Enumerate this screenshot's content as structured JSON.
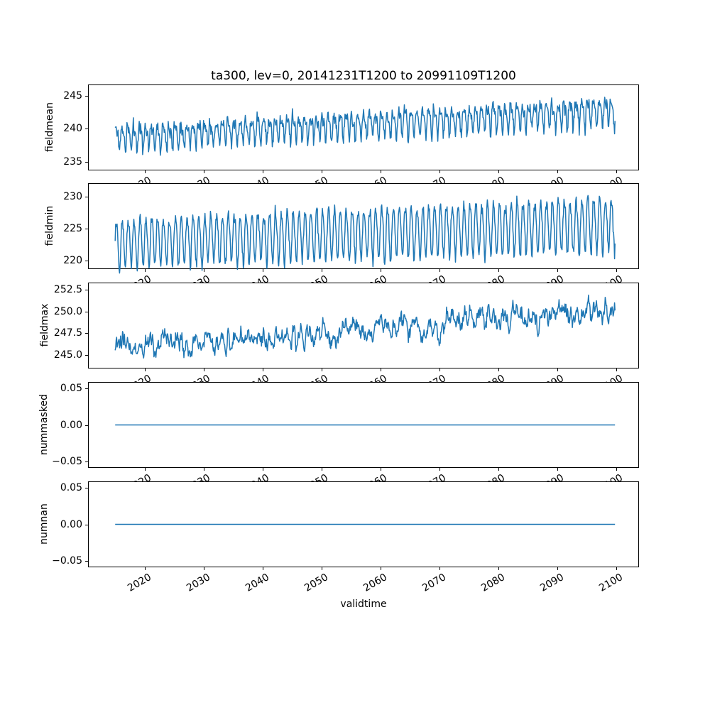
{
  "figure": {
    "background": "#ffffff",
    "text_color": "#000000",
    "spine_color": "#000000"
  },
  "chart_data": {
    "type": "line",
    "title": "ta300, lev=0, 20141231T1200 to 20991109T1200",
    "xlabel": "validtime",
    "line_color": "#1f77b4",
    "legend": "none",
    "grid": false,
    "x": {
      "start": 2015.0,
      "end": 2099.86,
      "samples_per_year": 12,
      "xlim": [
        2010.4,
        2103.9
      ],
      "xticks": [
        2020,
        2030,
        2040,
        2050,
        2060,
        2070,
        2080,
        2090,
        2100
      ],
      "xtick_labels": [
        "2020",
        "2030",
        "2040",
        "2050",
        "2060",
        "2070",
        "2080",
        "2090",
        "2100"
      ],
      "xtick_rotation_deg": 30
    },
    "subplots": [
      {
        "ylabel": "fieldmean",
        "ylim": [
          233.7,
          246.7
        ],
        "yticks": [
          235,
          240,
          245
        ],
        "ytick_labels": [
          "235",
          "240",
          "245"
        ],
        "summary": "annual oscillation, range about 235.5-242 in 2015 rising to about 240-246 by 2100",
        "gen": {
          "kind": "seasonal",
          "seed": 11,
          "base": 238.8,
          "trend_total": 3.9,
          "amp": 1.55,
          "amp_trend": 0.25,
          "harm2": 0.45,
          "phase": 0.3,
          "noise": 0.5
        }
      },
      {
        "ylabel": "fieldmin",
        "ylim": [
          218.65,
          232.1
        ],
        "yticks": [
          220,
          225,
          230
        ],
        "ytick_labels": [
          "220",
          "225",
          "230"
        ],
        "summary": "strong regular annual oscillation, range about 219-227 in 2015 rising to about 221-231 by 2100",
        "gen": {
          "kind": "seasonal",
          "seed": 22,
          "base": 222.9,
          "trend_total": 2.9,
          "amp": 3.6,
          "amp_trend": 0.5,
          "harm2": 0.12,
          "phase": 0.1,
          "noise": 0.5
        }
      },
      {
        "ylabel": "fieldmax",
        "ylim": [
          243.45,
          253.3
        ],
        "yticks": [
          245.0,
          247.5,
          250.0,
          252.5
        ],
        "ytick_labels": [
          "245.0",
          "247.5",
          "250.0",
          "252.5"
        ],
        "summary": "noisy series around 245.5 in 2015 (dips to ~243.9) rising to about 250-252.5 by 2100",
        "gen": {
          "kind": "ar1",
          "seed": 33,
          "base": 245.6,
          "trend_total": 4.6,
          "season_amp": 0.35,
          "ar": 0.75,
          "sigma": 0.5
        }
      },
      {
        "ylabel": "nummasked",
        "ylim": [
          -0.0585,
          0.0585
        ],
        "yticks": [
          -0.05,
          0.0,
          0.05
        ],
        "ytick_labels": [
          "−0.05",
          "0.00",
          "0.05"
        ],
        "summary": "constant zero line",
        "gen": {
          "kind": "const",
          "value": 0
        }
      },
      {
        "ylabel": "numnan",
        "ylim": [
          -0.0585,
          0.0585
        ],
        "yticks": [
          -0.05,
          0.0,
          0.05
        ],
        "ytick_labels": [
          "−0.05",
          "0.00",
          "0.05"
        ],
        "summary": "constant zero line",
        "gen": {
          "kind": "const",
          "value": 0
        }
      }
    ]
  }
}
